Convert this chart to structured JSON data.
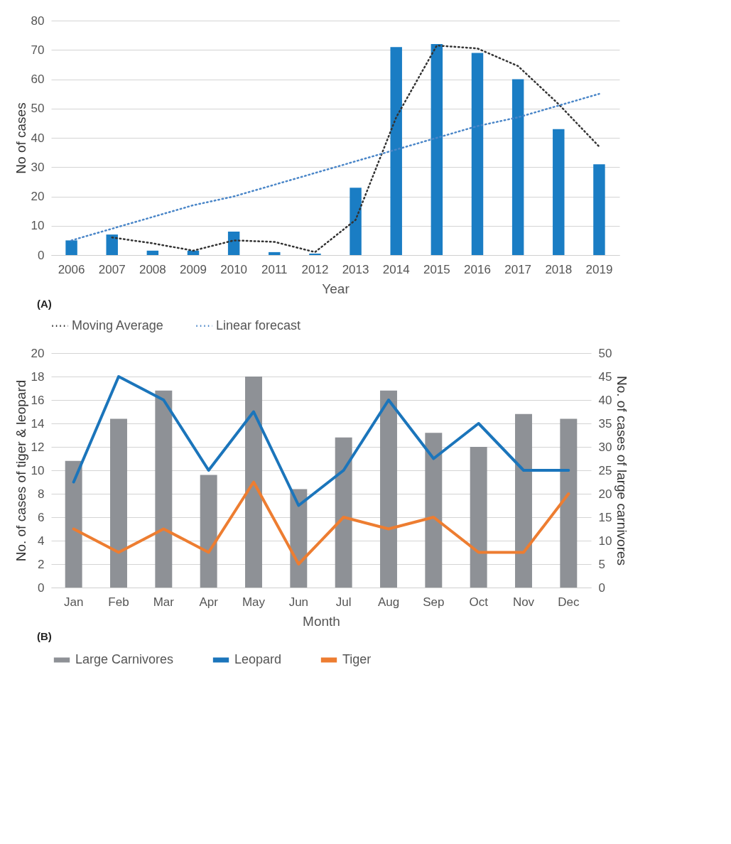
{
  "chart_data": [
    {
      "type": "bar",
      "xlabel": "Year",
      "ylabel": "No of cases",
      "categories": [
        "2006",
        "2007",
        "2008",
        "2009",
        "2010",
        "2011",
        "2012",
        "2013",
        "2014",
        "2015",
        "2016",
        "2017",
        "2018",
        "2019"
      ],
      "ylim": [
        0,
        80
      ],
      "yticks": [
        0,
        10,
        20,
        30,
        40,
        50,
        60,
        70,
        80
      ],
      "grid": "y",
      "legend": "bottom",
      "annotations": [
        "(A)"
      ],
      "series": [
        {
          "color": "#1a7dc4",
          "values": [
            5,
            7,
            1.5,
            1.5,
            8,
            1,
            0.5,
            23,
            71,
            72,
            69,
            60,
            43,
            31
          ]
        },
        {
          "type": "line",
          "name": "Moving Average",
          "color": "#333333",
          "line_style": "dotted",
          "values": [
            null,
            6,
            4,
            1.5,
            5,
            4.5,
            1,
            12,
            47,
            71.5,
            70.5,
            64.5,
            51.5,
            37
          ]
        },
        {
          "type": "line",
          "name": "Linear forecast",
          "color": "#4a86c8",
          "line_style": "dotted",
          "values": [
            5,
            9,
            13,
            17,
            20,
            24,
            28,
            32,
            36,
            40,
            44,
            47,
            51,
            55
          ]
        }
      ]
    },
    {
      "type": "bar",
      "xlabel": "Month",
      "ylabel": "No. of cases of tiger & leopard",
      "y2label": "No. of cases of large carnivores",
      "categories": [
        "Jan",
        "Feb",
        "Mar",
        "Apr",
        "May",
        "Jun",
        "Jul",
        "Aug",
        "Sep",
        "Oct",
        "Nov",
        "Dec"
      ],
      "ylim": [
        0,
        20
      ],
      "yticks": [
        0,
        2,
        4,
        6,
        8,
        10,
        12,
        14,
        16,
        18,
        20
      ],
      "y2lim": [
        0,
        50
      ],
      "y2ticks": [
        0,
        5,
        10,
        15,
        20,
        25,
        30,
        35,
        40,
        45,
        50
      ],
      "grid": "y",
      "legend": "bottom",
      "annotations": [
        "(B)"
      ],
      "series": [
        {
          "name": "Large Carnivores",
          "color": "#8e9196",
          "axis": "y2",
          "values": [
            27,
            36,
            42,
            24,
            45,
            21,
            32,
            42,
            33,
            30,
            37,
            36
          ]
        },
        {
          "type": "line",
          "name": "Leopard",
          "color": "#1b75bb",
          "line_style": "solid",
          "values": [
            9,
            18,
            16,
            10,
            15,
            7,
            10,
            16,
            11,
            14,
            10,
            10
          ]
        },
        {
          "type": "line",
          "name": "Tiger",
          "color": "#ed7d31",
          "line_style": "solid",
          "values": [
            5,
            3,
            5,
            3,
            9,
            2,
            6,
            5,
            6,
            3,
            3,
            8
          ]
        }
      ]
    }
  ]
}
